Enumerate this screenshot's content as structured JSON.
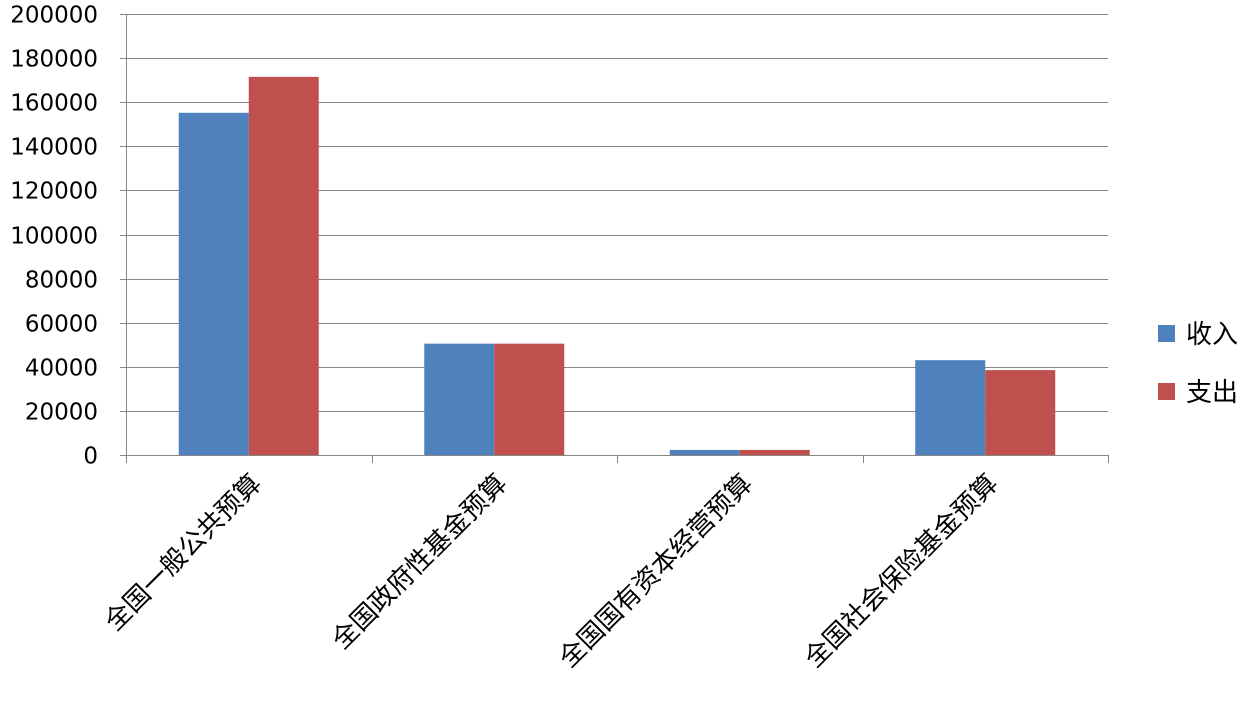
{
  "chart_data": {
    "type": "bar",
    "categories": [
      "全国一般公共预算",
      "全国政府性基金预算",
      "全国国有资本经营预算",
      "全国社会保险基金预算"
    ],
    "series": [
      {
        "name": "收入",
        "color": "#4f81bd",
        "values": [
          155200,
          50500,
          2300,
          43000
        ]
      },
      {
        "name": "支出",
        "color": "#c0504d",
        "values": [
          171500,
          50500,
          2300,
          38500
        ]
      }
    ],
    "ylim": [
      0,
      200000
    ],
    "yticks": [
      "0",
      "20000",
      "40000",
      "60000",
      "80000",
      "100000",
      "120000",
      "140000",
      "160000",
      "180000",
      "200000"
    ],
    "grid": true,
    "legend_position": "right"
  }
}
